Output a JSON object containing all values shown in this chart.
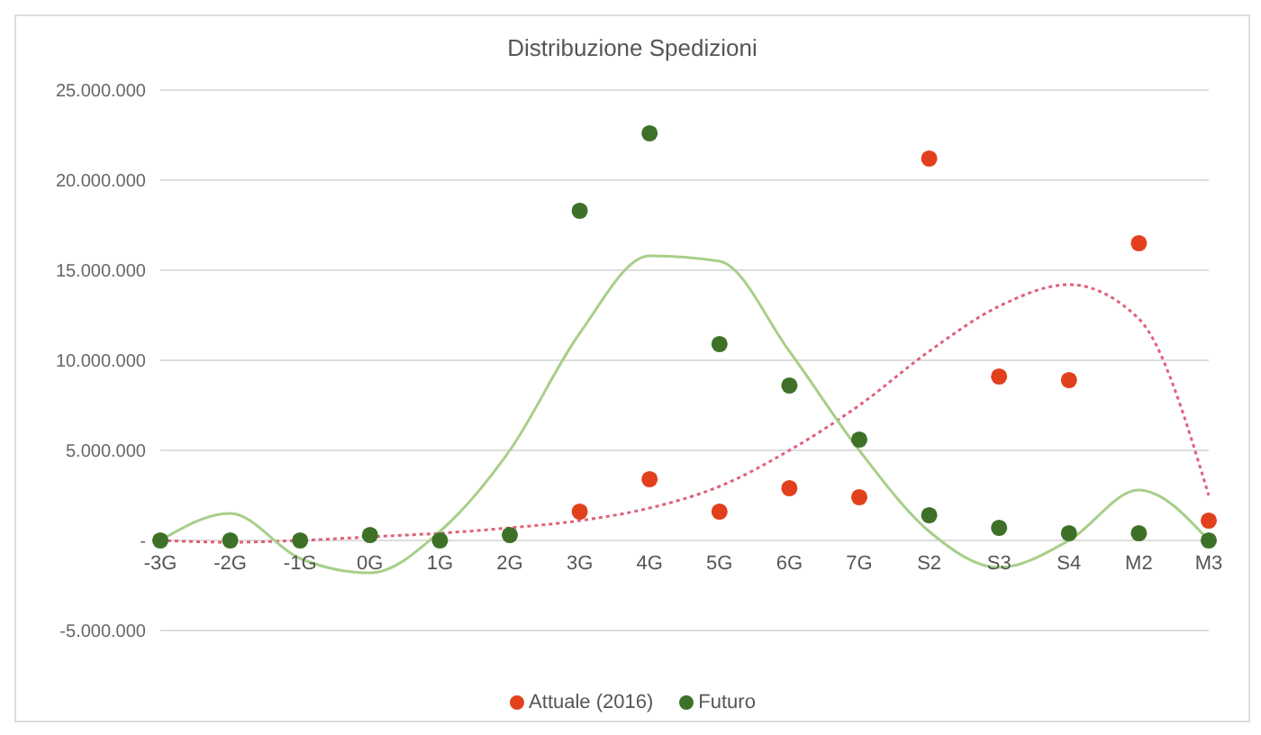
{
  "chart_data": {
    "type": "scatter",
    "title": "Distribuzione Spedizioni",
    "categories": [
      "-3G",
      "-2G",
      "-1G",
      "0G",
      "1G",
      "2G",
      "3G",
      "4G",
      "5G",
      "6G",
      "7G",
      "S2",
      "S3",
      "S4",
      "M2",
      "M3"
    ],
    "series": [
      {
        "name": "Attuale (2016)",
        "color": "#e2401c",
        "values": [
          null,
          null,
          null,
          null,
          null,
          null,
          1600000,
          3400000,
          1600000,
          2900000,
          2400000,
          21200000,
          9100000,
          8900000,
          16500000,
          1100000
        ]
      },
      {
        "name": "Futuro",
        "color": "#3d7128",
        "values": [
          0,
          0,
          0,
          300000,
          0,
          300000,
          18300000,
          22600000,
          10900000,
          8600000,
          5600000,
          1400000,
          700000,
          400000,
          400000,
          0
        ]
      },
      {
        "type": "line",
        "color": "#e0607a",
        "line_style": "dotted",
        "marker": "none",
        "values": [
          0,
          -100000,
          0,
          200000,
          400000,
          700000,
          1100000,
          1800000,
          3000000,
          5000000,
          7500000,
          10500000,
          13000000,
          14200000,
          12300000,
          2500000
        ]
      },
      {
        "type": "line",
        "color": "#a8cf8a",
        "line_style": "solid",
        "marker": "none",
        "values": [
          0,
          1500000,
          -1000000,
          -1800000,
          500000,
          5000000,
          11500000,
          15800000,
          15500000,
          10500000,
          5000000,
          500000,
          -1500000,
          0,
          2800000,
          0
        ]
      }
    ],
    "ylim": [
      -5000000,
      25000000
    ],
    "yticks": [
      {
        "value": -5000000,
        "label": "-5.000.000"
      },
      {
        "value": 0,
        "label": "-"
      },
      {
        "value": 5000000,
        "label": "5.000.000"
      },
      {
        "value": 10000000,
        "label": "10.000.000"
      },
      {
        "value": 15000000,
        "label": "15.000.000"
      },
      {
        "value": 20000000,
        "label": "20.000.000"
      },
      {
        "value": 25000000,
        "label": "25.000.000"
      }
    ],
    "grid": "y",
    "legend": "bottom",
    "marker": "circle"
  }
}
